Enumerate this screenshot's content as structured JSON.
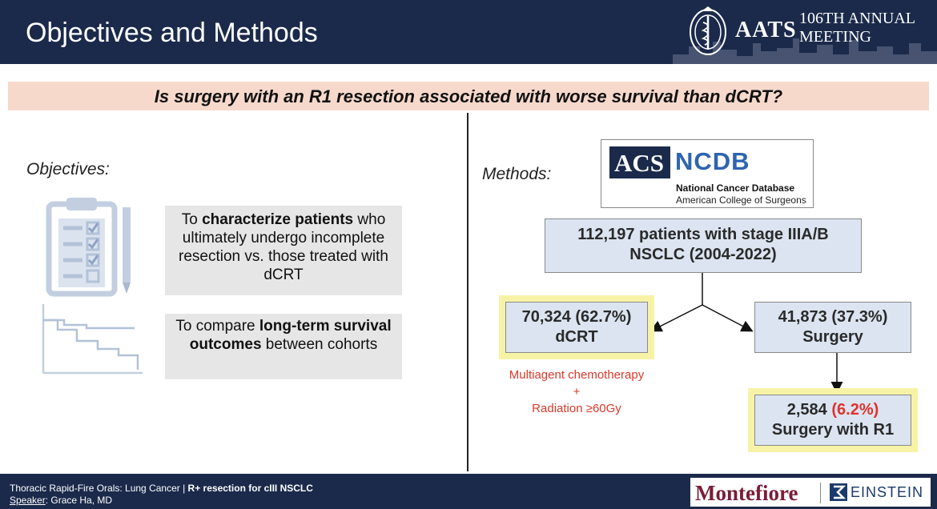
{
  "header": {
    "title": "Objectives and Methods",
    "logo_text": "AATS",
    "meeting_line1": "106TH ANNUAL",
    "meeting_line2": "MEETING"
  },
  "question": "Is surgery with an R1 resection associated with worse survival than dCRT?",
  "objectives": {
    "label": "Objectives:",
    "box1": {
      "pre": "To ",
      "bold": "characterize patients",
      "rest": " who ultimately undergo incomplete resection vs. those treated with dCRT"
    },
    "box2": {
      "pre": "To compare ",
      "bold": "long-term survival outcomes",
      "rest": " between cohorts"
    }
  },
  "methods": {
    "label": "Methods:",
    "ncdb": {
      "acs": "ACS",
      "name": "NCDB",
      "line1": "National Cancer Database",
      "line2": "American College of Surgeons"
    },
    "top_box": {
      "line1": "112,197 patients with stage IIIA/B",
      "line2": "NSCLC (2004-2022)"
    },
    "dcrt_box": {
      "line1": "70,324 (62.7%)",
      "line2": "dCRT"
    },
    "surgery_box": {
      "line1": "41,873 (37.3%)",
      "line2": "Surgery"
    },
    "r1_box": {
      "count": "2,584",
      "pct": "(6.2%)",
      "line2": "Surgery with R1"
    },
    "note": {
      "line1": "Multiagent chemotherapy",
      "line2": "+",
      "line3": "Radiation ≥60Gy"
    }
  },
  "footer": {
    "session": "Thoracic Rapid-Fire Orals: Lung Cancer | ",
    "session_bold": "R+ resection for cIII NSCLC",
    "speaker_label": "Speaker",
    "speaker_name": ": Grace Ha, MD",
    "logo1": "Montefiore",
    "logo2": "EINSTEIN"
  },
  "colors": {
    "navy": "#1b2a4b",
    "question_bg": "#f7d9cc",
    "box_blue": "#dbe4f0",
    "highlight": "#f7f3a6",
    "red": "#e0322d"
  }
}
